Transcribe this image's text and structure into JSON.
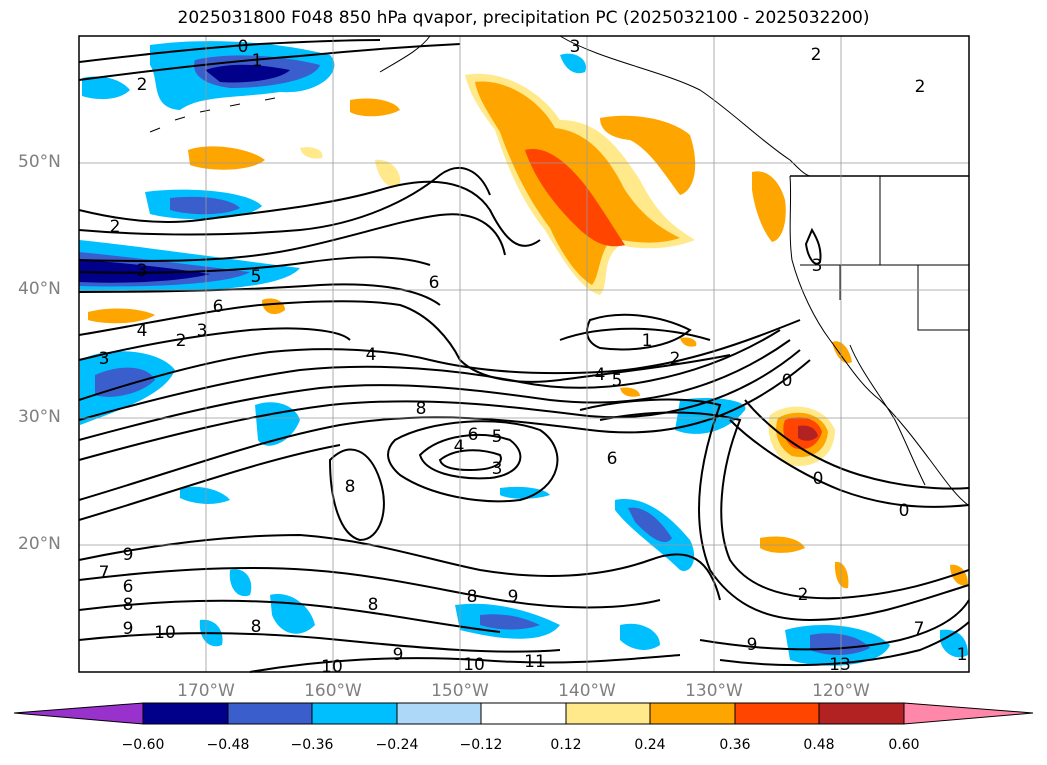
{
  "title": "2025031800 F048 850 hPa qvapor, precipitation PC (2025032100 - 2025032200)",
  "map": {
    "lat_labels": [
      "50°N",
      "40°N",
      "30°N",
      "20°N"
    ],
    "lon_labels": [
      "170°W",
      "160°W",
      "150°W",
      "140°W",
      "130°W",
      "120°W"
    ],
    "contour_labels": [
      "0",
      "1",
      "2",
      "3",
      "2",
      "2",
      "2",
      "3",
      "5",
      "6",
      "4",
      "3",
      "2",
      "3",
      "4",
      "6",
      "3",
      "1",
      "2",
      "4",
      "5",
      "8",
      "6",
      "5",
      "4",
      "3",
      "6",
      "8",
      "0",
      "0",
      "0",
      "9",
      "7",
      "6",
      "8",
      "9",
      "10",
      "8",
      "8",
      "9",
      "8",
      "10",
      "10",
      "11",
      "9",
      "2",
      "7",
      "9",
      "13",
      "1"
    ]
  },
  "colorbar": {
    "tick_labels": [
      "−0.60",
      "−0.48",
      "−0.36",
      "−0.24",
      "−0.12",
      "0.12",
      "0.24",
      "0.36",
      "0.48",
      "0.60"
    ],
    "colors": [
      "#9932cc",
      "#00008b",
      "#3a5fcd",
      "#00bfff",
      "#add8f7",
      "#ffffff",
      "#ffe98a",
      "#ffa500",
      "#ff4500",
      "#b22222",
      "#ff88aa"
    ]
  },
  "chart_data": {
    "type": "heatmap",
    "title": "2025031800 F048 850 hPa qvapor, precipitation PC (2025032100 - 2025032200)",
    "variable_contours": "850 hPa qvapor",
    "variable_filled": "precipitation PC",
    "lat_range": [
      10,
      60
    ],
    "lon_range": [
      -180,
      -110
    ],
    "lat_ticks": [
      20,
      30,
      40,
      50
    ],
    "lon_ticks": [
      -170,
      -160,
      -150,
      -140,
      -130,
      -120
    ],
    "grid": true,
    "colorbar_levels": [
      -0.6,
      -0.48,
      -0.36,
      -0.24,
      -0.12,
      0.12,
      0.24,
      0.36,
      0.48,
      0.6
    ],
    "colorbar_extend": "both",
    "colorbar_placement": "bottom"
  }
}
